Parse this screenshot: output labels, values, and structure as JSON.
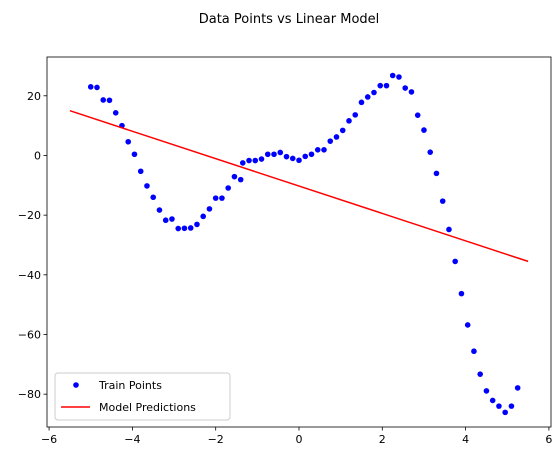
{
  "chart_data": {
    "type": "scatter",
    "title": "Data Points vs Linear Model",
    "xlabel": "",
    "ylabel": "",
    "xlim": [
      -6.05,
      6.05
    ],
    "ylim": [
      -91,
      33
    ],
    "xticks": [
      -6,
      -4,
      -2,
      0,
      2,
      4,
      6
    ],
    "yticks": [
      -80,
      -60,
      -40,
      -20,
      0,
      20
    ],
    "grid": false,
    "legend_position": "lower-left",
    "series": [
      {
        "name": "Train Points",
        "kind": "scatter",
        "color": "#0000ff",
        "points": [
          [
            -5.0,
            23.0
          ],
          [
            -4.85,
            22.8
          ],
          [
            -4.7,
            18.6
          ],
          [
            -4.55,
            18.5
          ],
          [
            -4.4,
            14.3
          ],
          [
            -4.25,
            10.0
          ],
          [
            -4.1,
            4.6
          ],
          [
            -3.95,
            0.4
          ],
          [
            -3.8,
            -5.3
          ],
          [
            -3.65,
            -10.2
          ],
          [
            -3.5,
            -14.0
          ],
          [
            -3.35,
            -18.3
          ],
          [
            -3.2,
            -21.7
          ],
          [
            -3.05,
            -21.3
          ],
          [
            -2.9,
            -24.5
          ],
          [
            -2.75,
            -24.4
          ],
          [
            -2.6,
            -24.3
          ],
          [
            -2.45,
            -23.1
          ],
          [
            -2.3,
            -20.4
          ],
          [
            -2.15,
            -17.9
          ],
          [
            -2.0,
            -14.3
          ],
          [
            -1.85,
            -14.3
          ],
          [
            -1.7,
            -10.9
          ],
          [
            -1.55,
            -7.1
          ],
          [
            -1.4,
            -8.1
          ],
          [
            -1.35,
            -2.5
          ],
          [
            -1.2,
            -1.7
          ],
          [
            -1.05,
            -1.7
          ],
          [
            -0.9,
            -1.2
          ],
          [
            -0.75,
            0.4
          ],
          [
            -0.6,
            0.4
          ],
          [
            -0.45,
            1.0
          ],
          [
            -0.3,
            -0.4
          ],
          [
            -0.15,
            -1.0
          ],
          [
            0.0,
            -1.6
          ],
          [
            0.15,
            -0.3
          ],
          [
            0.3,
            0.4
          ],
          [
            0.45,
            1.9
          ],
          [
            0.6,
            1.9
          ],
          [
            0.75,
            4.8
          ],
          [
            0.9,
            6.2
          ],
          [
            1.05,
            8.4
          ],
          [
            1.2,
            11.6
          ],
          [
            1.35,
            13.6
          ],
          [
            1.5,
            17.8
          ],
          [
            1.65,
            19.6
          ],
          [
            1.8,
            21.1
          ],
          [
            1.95,
            23.4
          ],
          [
            2.1,
            23.4
          ],
          [
            2.25,
            26.8
          ],
          [
            2.4,
            26.3
          ],
          [
            2.55,
            22.6
          ],
          [
            2.7,
            21.3
          ],
          [
            2.85,
            13.5
          ],
          [
            3.0,
            8.5
          ],
          [
            3.15,
            1.1
          ],
          [
            3.3,
            -6.0
          ],
          [
            3.45,
            -15.3
          ],
          [
            3.6,
            -24.8
          ],
          [
            3.75,
            -35.5
          ],
          [
            3.9,
            -46.3
          ],
          [
            4.05,
            -56.8
          ],
          [
            4.2,
            -65.6
          ],
          [
            4.35,
            -73.3
          ],
          [
            4.5,
            -78.9
          ],
          [
            4.65,
            -82.1
          ],
          [
            4.8,
            -84.0
          ],
          [
            4.95,
            -86.1
          ],
          [
            5.1,
            -84.0
          ],
          [
            5.25,
            -77.9
          ]
        ]
      },
      {
        "name": "Model Predictions",
        "kind": "line",
        "color": "#ff0000",
        "x": [
          -5.5,
          5.5
        ],
        "y": [
          15.0,
          -35.5
        ]
      }
    ]
  }
}
